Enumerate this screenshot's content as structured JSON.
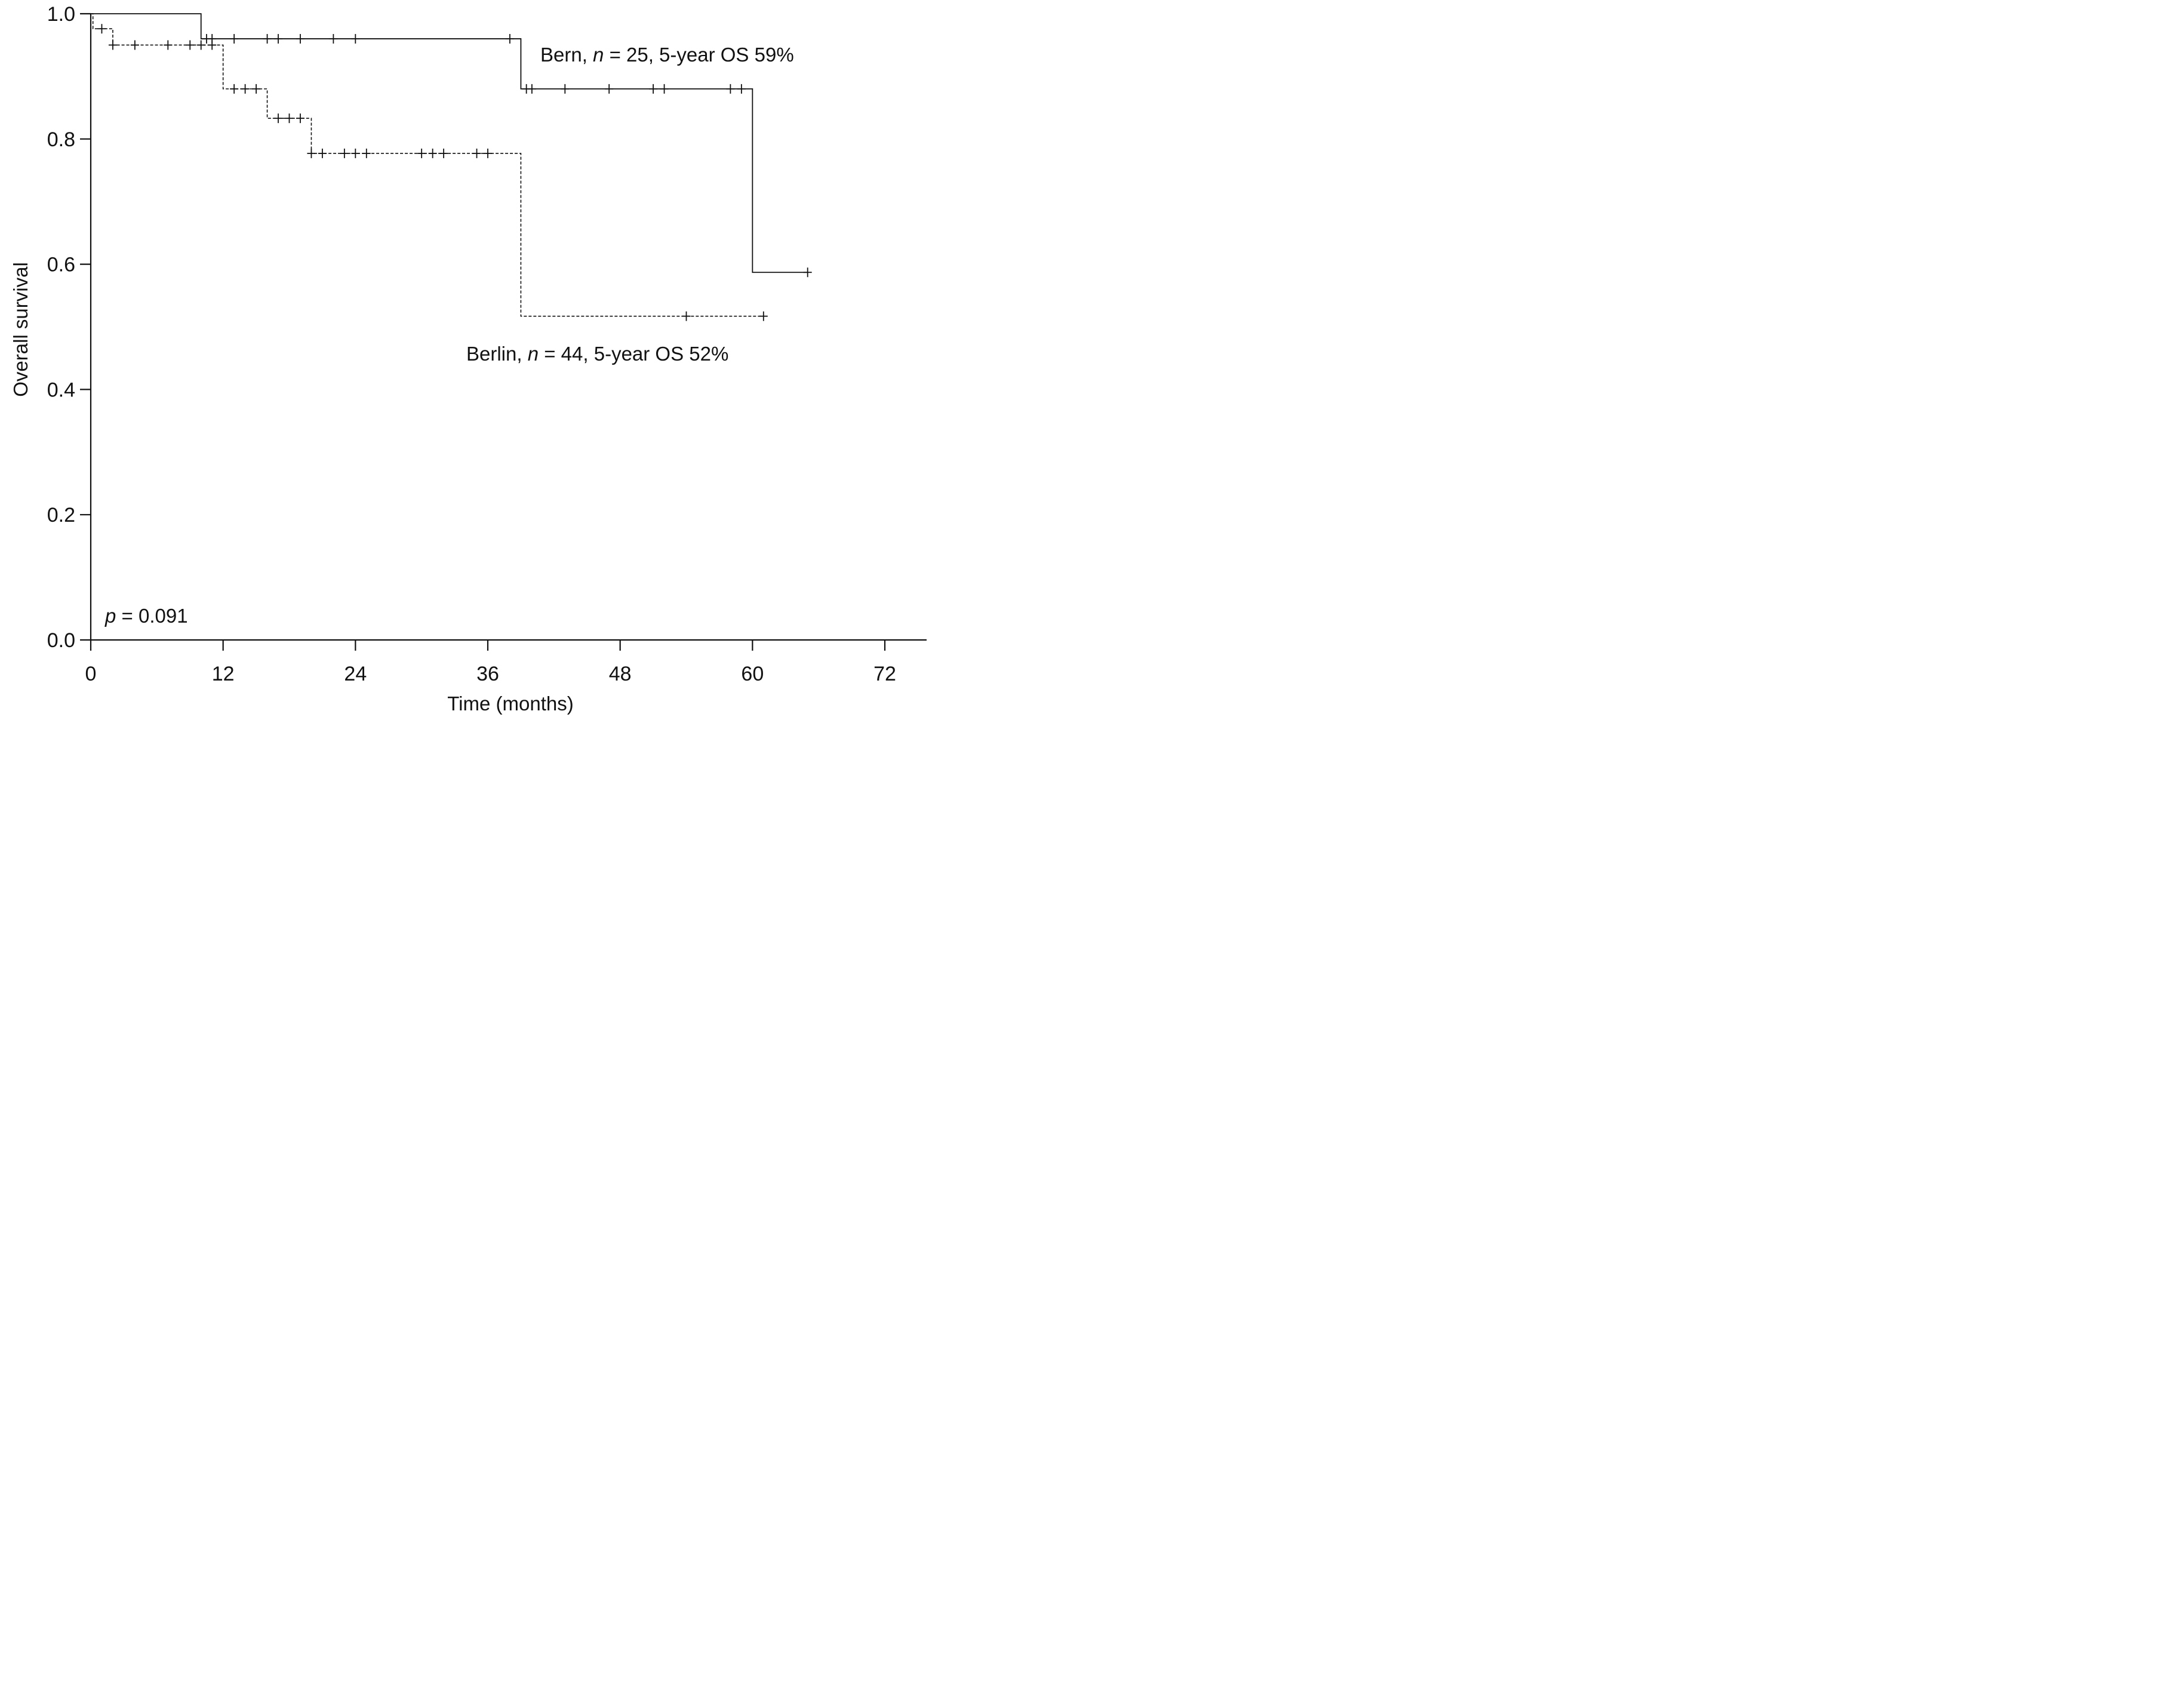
{
  "chart_data": {
    "type": "line",
    "subtype": "kaplan-meier",
    "title": "",
    "xlabel": "Time (months)",
    "ylabel": "Overall survival",
    "xlim": [
      0,
      72
    ],
    "ylim": [
      0.0,
      1.0
    ],
    "xticks": [
      0,
      12,
      24,
      36,
      48,
      60,
      72
    ],
    "xtick_labels": [
      "0",
      "12",
      "24",
      "36",
      "48",
      "60",
      "72"
    ],
    "yticks": [
      0.0,
      0.2,
      0.4,
      0.6,
      0.8,
      1.0
    ],
    "ytick_labels": [
      "0.0",
      "0.2",
      "0.4",
      "0.6",
      "0.8",
      "1.0"
    ],
    "grid": false,
    "legend": "none",
    "annotation_p": {
      "italic": "p",
      "rest": " = 0.091"
    },
    "series": [
      {
        "name": "Bern",
        "line_style": "solid",
        "label_parts": {
          "name": "Bern, ",
          "n_symbol": "n",
          "rest": " = 25, 5-year OS 59%"
        },
        "n": 25,
        "five_year_os": "59%",
        "steps": [
          {
            "t": 0,
            "s": 1.0
          },
          {
            "t": 10,
            "s": 0.96
          },
          {
            "t": 39,
            "s": 0.88
          },
          {
            "t": 60,
            "s": 0.587
          }
        ],
        "end_time": 65,
        "censored_times": [
          10.5,
          11,
          13,
          16,
          17,
          19,
          22,
          24,
          38,
          39.5,
          40,
          43,
          47,
          51,
          52,
          58,
          59,
          65
        ]
      },
      {
        "name": "Berlin",
        "line_style": "dashed",
        "label_parts": {
          "name": "Berlin, ",
          "n_symbol": "n",
          "rest": " = 44, 5-year OS 52%"
        },
        "n": 44,
        "five_year_os": "52%",
        "steps": [
          {
            "t": 0,
            "s": 1.0
          },
          {
            "t": 0.2,
            "s": 0.976
          },
          {
            "t": 2,
            "s": 0.95
          },
          {
            "t": 12,
            "s": 0.88
          },
          {
            "t": 16,
            "s": 0.833
          },
          {
            "t": 20,
            "s": 0.777
          },
          {
            "t": 39,
            "s": 0.517
          }
        ],
        "end_time": 61,
        "censored_times": [
          1,
          2,
          4,
          7,
          9,
          10,
          11,
          13,
          14,
          15,
          17,
          18,
          19,
          20,
          21,
          23,
          24,
          25,
          30,
          31,
          32,
          35,
          36,
          54,
          61
        ]
      }
    ]
  }
}
